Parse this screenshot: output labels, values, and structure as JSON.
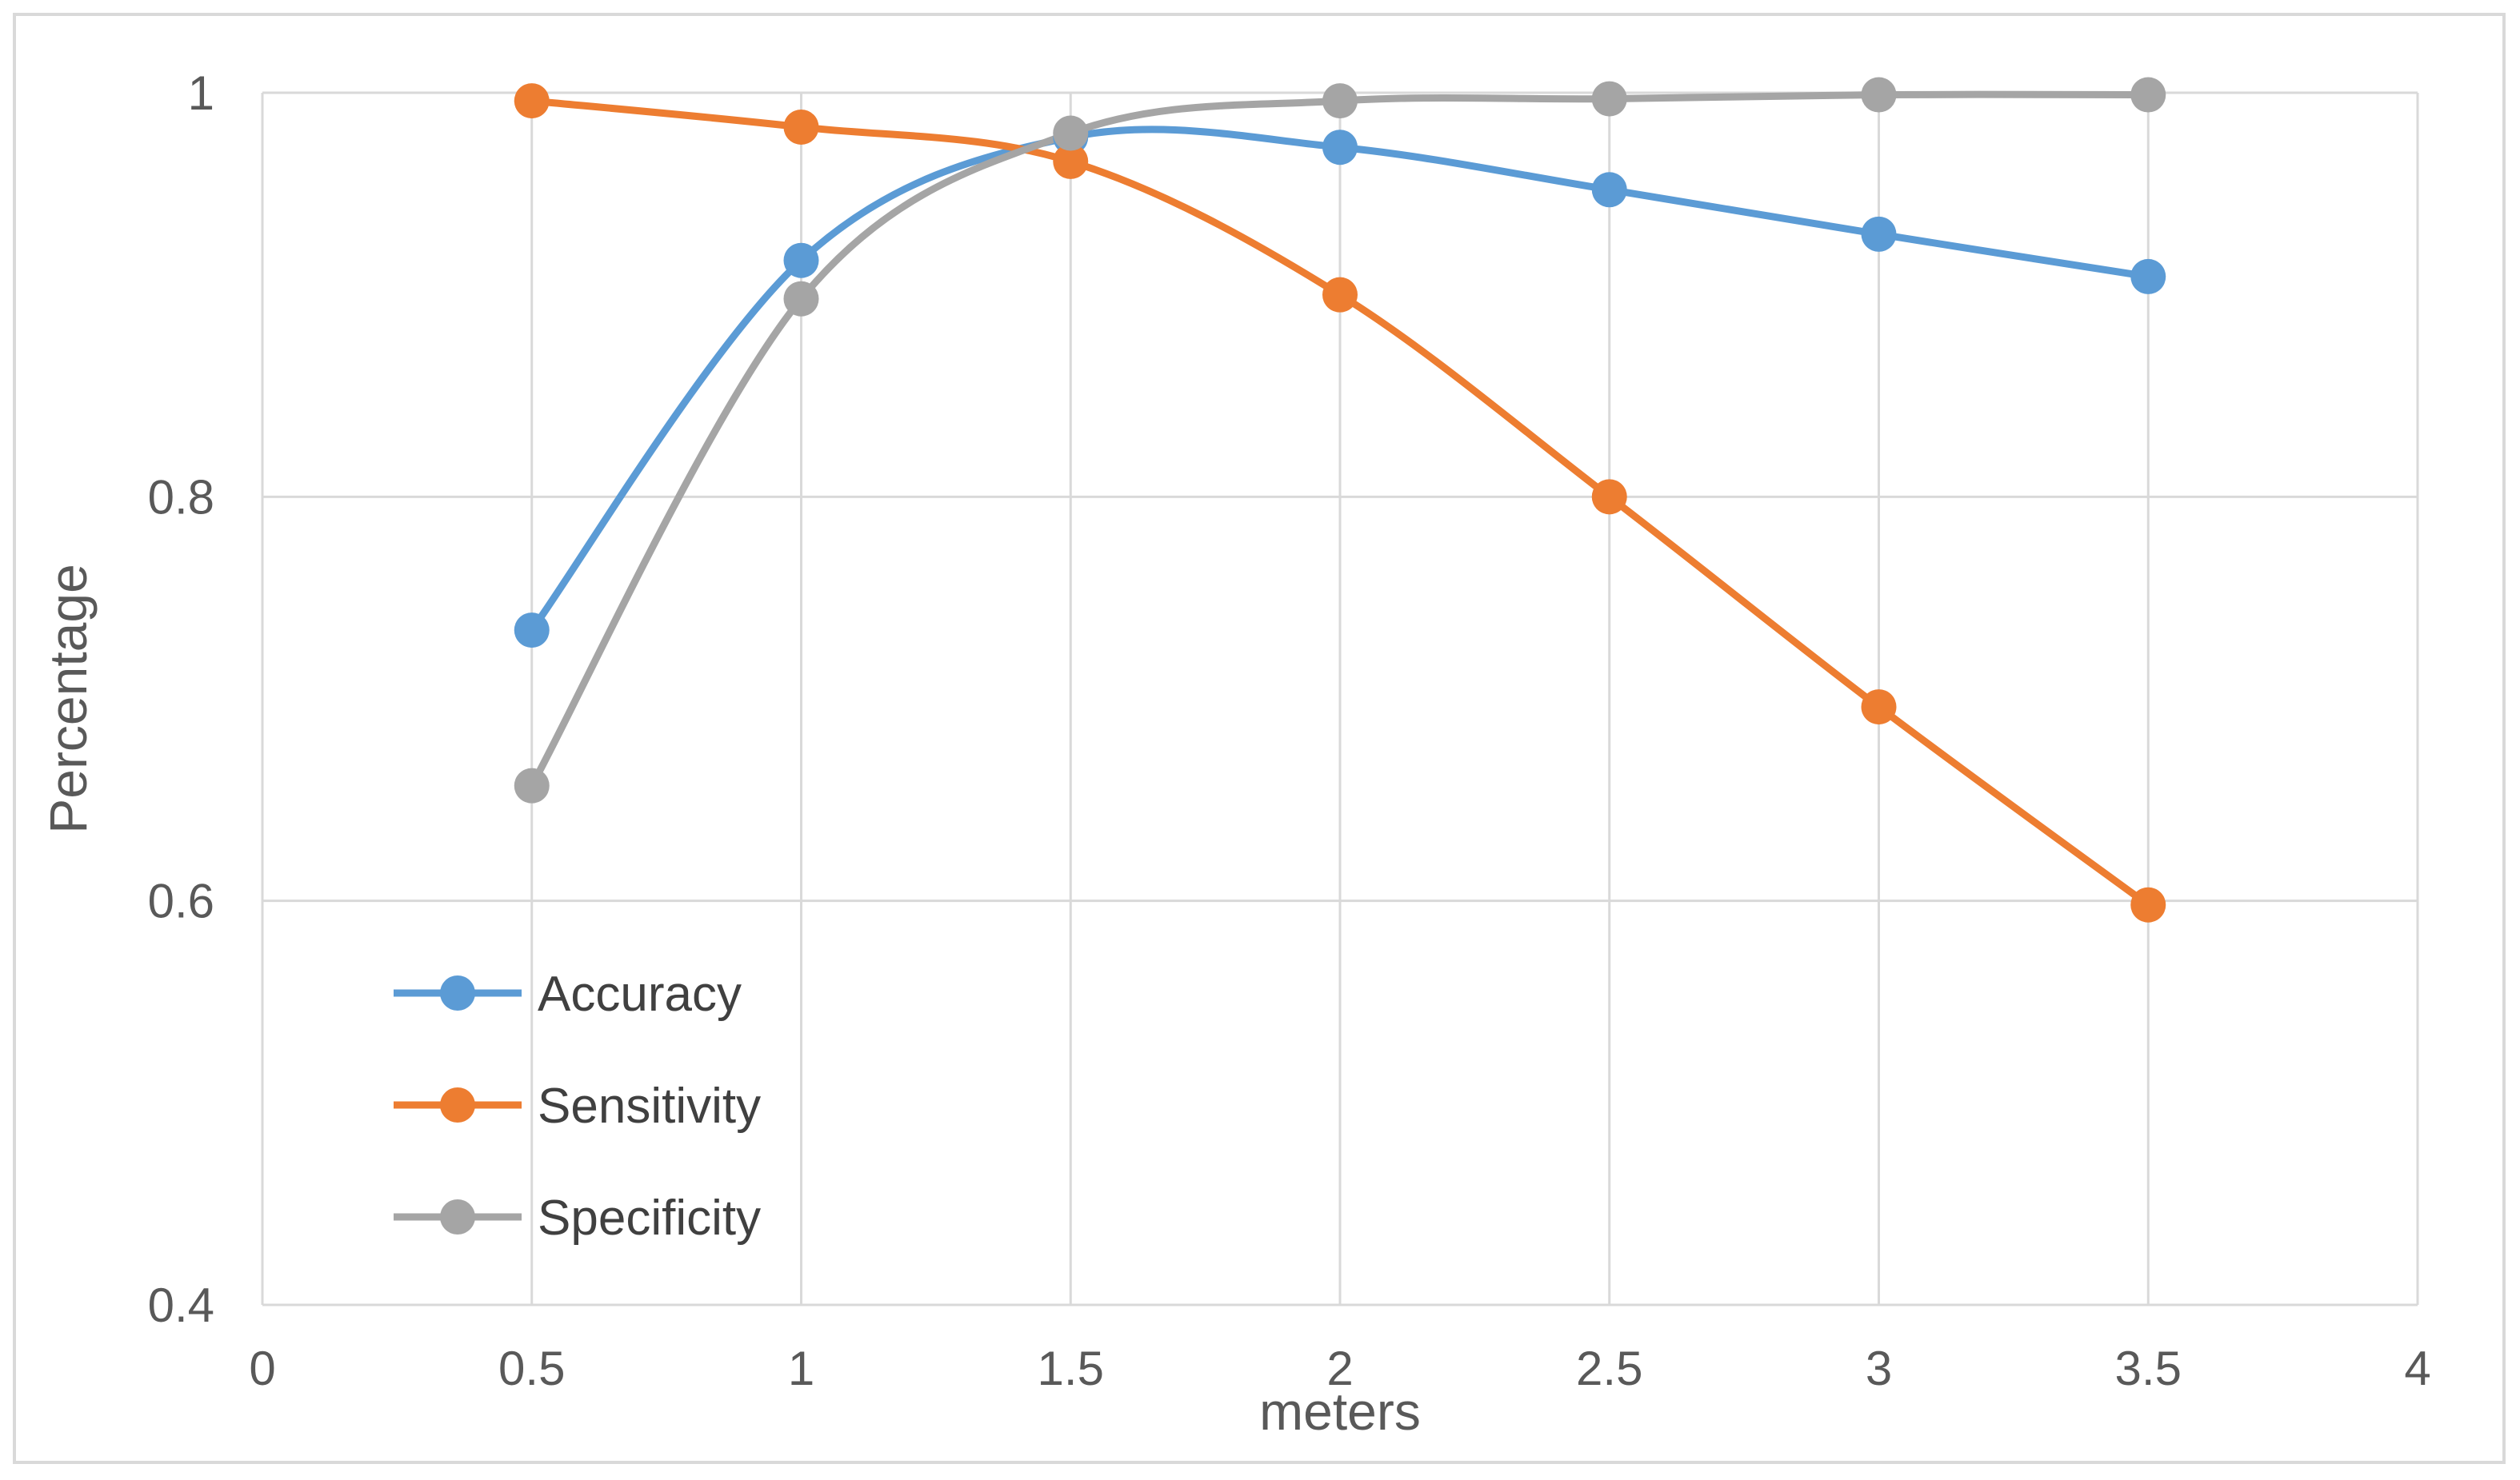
{
  "chart_data": {
    "type": "line",
    "title": "",
    "xlabel": "meters",
    "ylabel": "Percentage",
    "xlim": [
      0,
      4
    ],
    "ylim": [
      0.4,
      1
    ],
    "x_ticks": [
      0,
      0.5,
      1,
      1.5,
      2,
      2.5,
      3,
      3.5,
      4
    ],
    "x_tick_labels": [
      "0",
      "0.5",
      "1",
      "1.5",
      "2",
      "2.5",
      "3",
      "3.5",
      "4"
    ],
    "y_ticks": [
      0.4,
      0.6,
      0.8,
      1
    ],
    "y_tick_labels": [
      "0.4",
      "0.6",
      "0.8",
      "1"
    ],
    "grid": true,
    "smooth": true,
    "legend_position": "bottom-left",
    "x": [
      0.5,
      1,
      1.5,
      2,
      2.5,
      3,
      3.5
    ],
    "series": [
      {
        "name": "Accuracy",
        "color": "#5b9bd5",
        "values": [
          0.734,
          0.917,
          0.978,
          0.973,
          0.952,
          0.93,
          0.909
        ]
      },
      {
        "name": "Sensitivity",
        "color": "#ed7d31",
        "values": [
          0.996,
          0.983,
          0.966,
          0.9,
          0.8,
          0.696,
          0.598
        ]
      },
      {
        "name": "Specificity",
        "color": "#a5a5a5",
        "values": [
          0.657,
          0.898,
          0.98,
          0.996,
          0.997,
          0.999,
          0.999
        ]
      }
    ]
  }
}
